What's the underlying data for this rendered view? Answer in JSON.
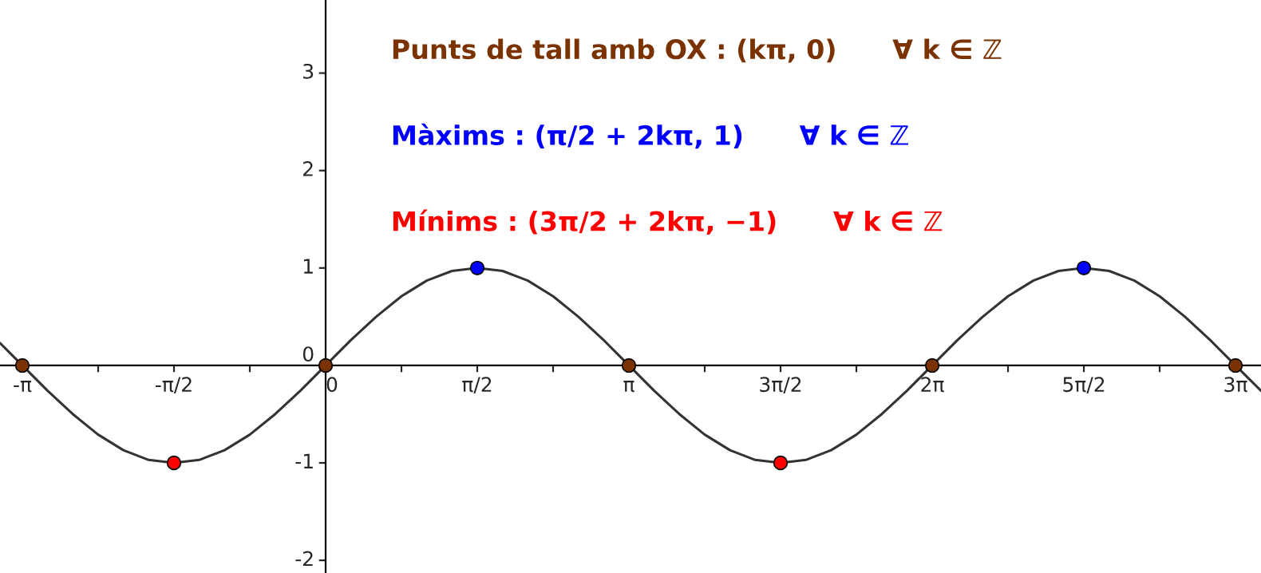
{
  "chart_data": {
    "type": "line",
    "xlim": [
      -3.373,
      9.689
    ],
    "ylim": [
      -2.13,
      3.75
    ],
    "xticks": [
      {
        "value": -3.1416,
        "label": "-π"
      },
      {
        "value": -2.3562,
        "label": null
      },
      {
        "value": -1.5708,
        "label": "-π/2"
      },
      {
        "value": -0.7854,
        "label": null
      },
      {
        "value": 0,
        "label": "0"
      },
      {
        "value": 0.7854,
        "label": null
      },
      {
        "value": 1.5708,
        "label": "π/2"
      },
      {
        "value": 2.3562,
        "label": null
      },
      {
        "value": 3.1416,
        "label": "π"
      },
      {
        "value": 3.927,
        "label": null
      },
      {
        "value": 4.7124,
        "label": "3π/2"
      },
      {
        "value": 5.4978,
        "label": null
      },
      {
        "value": 6.2832,
        "label": "2π"
      },
      {
        "value": 7.0686,
        "label": null
      },
      {
        "value": 7.854,
        "label": "5π/2"
      },
      {
        "value": 8.6394,
        "label": null
      },
      {
        "value": 9.4248,
        "label": "3π"
      }
    ],
    "yticks": [
      -2,
      -1,
      0,
      1,
      2,
      3
    ],
    "grid": false,
    "legend": "top",
    "series": [
      {
        "color": "#333333",
        "x": [
          -3.373,
          -3.1416,
          -2.8798,
          -2.618,
          -2.3562,
          -2.0944,
          -1.8326,
          -1.5708,
          -1.309,
          -1.0472,
          -0.7854,
          -0.5236,
          -0.2618,
          0,
          0.2618,
          0.5236,
          0.7854,
          1.0472,
          1.309,
          1.5708,
          1.8326,
          2.0944,
          2.3562,
          2.618,
          2.8798,
          3.1416,
          3.4034,
          3.6652,
          3.927,
          4.1888,
          4.4506,
          4.7124,
          4.9742,
          5.236,
          5.4978,
          5.7596,
          6.0214,
          6.2832,
          6.545,
          6.8068,
          7.0686,
          7.3304,
          7.5922,
          7.854,
          8.1158,
          8.3776,
          8.6394,
          8.9012,
          9.163,
          9.4248,
          9.689
        ],
        "values": [
          0.23,
          0,
          -0.26,
          -0.5,
          -0.71,
          -0.87,
          -0.97,
          -1,
          -0.97,
          -0.87,
          -0.71,
          -0.5,
          -0.26,
          0,
          0.26,
          0.5,
          0.71,
          0.87,
          0.97,
          1,
          0.97,
          0.87,
          0.71,
          0.5,
          0.26,
          0,
          -0.26,
          -0.5,
          -0.71,
          -0.87,
          -0.97,
          -1,
          -0.97,
          -0.87,
          -0.71,
          -0.5,
          -0.26,
          0,
          0.26,
          0.5,
          0.71,
          0.87,
          0.97,
          1,
          0.97,
          0.87,
          0.71,
          0.5,
          0.26,
          0,
          -0.26
        ]
      },
      {
        "type": "scatter",
        "name": "Punts de tall amb OX : (kπ, 0)      ∀ k ∈ ℤ",
        "color": "#7a3300",
        "x": [
          -3.1416,
          0,
          3.1416,
          6.2832,
          9.4248
        ],
        "values": [
          0,
          0,
          0,
          0,
          0
        ]
      },
      {
        "type": "scatter",
        "name": "Màxims : (π/2 + 2kπ, 1)      ∀ k ∈ ℤ",
        "color": "#0000ff",
        "x": [
          1.5708,
          7.854
        ],
        "values": [
          1,
          1
        ]
      },
      {
        "type": "scatter",
        "name": "Mínims : (3π/2 + 2kπ, −1)      ∀ k ∈ ℤ",
        "color": "#ff0000",
        "x": [
          -1.5708,
          4.7124
        ],
        "values": [
          -1,
          -1
        ]
      }
    ]
  }
}
